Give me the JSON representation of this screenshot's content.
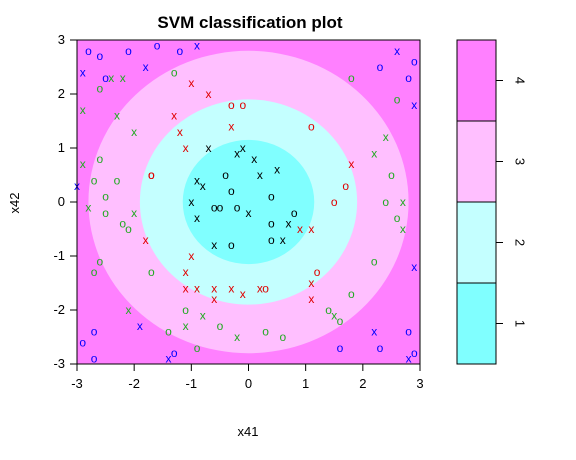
{
  "chart_data": {
    "type": "heatmap",
    "title": "SVM classification plot",
    "xlabel": "x41",
    "ylabel": "x42",
    "xlim": [
      -3,
      3
    ],
    "ylim": [
      -3,
      3
    ],
    "xticks": [
      "-3",
      "-2",
      "-1",
      "0",
      "1",
      "2",
      "3"
    ],
    "yticks": [
      "-3",
      "-2",
      "-1",
      "0",
      "1",
      "2",
      "3"
    ],
    "regions": [
      {
        "class": "1",
        "color": "#80FFFF",
        "rule": "radius < 1.15"
      },
      {
        "class": "2",
        "color": "#C4FFFF",
        "rule": "1.15 <= radius < 1.9"
      },
      {
        "class": "3",
        "color": "#FFBFFF",
        "rule": "1.9 <= radius < 2.8"
      },
      {
        "class": "4",
        "color": "#FF80FF",
        "rule": "radius >= 2.8"
      }
    ],
    "legend": {
      "placement": "right",
      "labels": [
        "1",
        "2",
        "3",
        "4"
      ],
      "colors": [
        "#80FFFF",
        "#C4FFFF",
        "#FFBFFF",
        "#FF80FF"
      ]
    },
    "class_colors": {
      "1": "#000000",
      "2": "#E00000",
      "3": "#22AA22",
      "4": "#0000FF"
    },
    "points": [
      {
        "x": -0.7,
        "y": 1.0,
        "c": "1",
        "s": "x"
      },
      {
        "x": -0.2,
        "y": 0.9,
        "c": "1",
        "s": "x"
      },
      {
        "x": 0.1,
        "y": 0.8,
        "c": "1",
        "s": "x"
      },
      {
        "x": 0.5,
        "y": 0.6,
        "c": "1",
        "s": "x"
      },
      {
        "x": -0.9,
        "y": 0.4,
        "c": "1",
        "s": "x"
      },
      {
        "x": -0.8,
        "y": 0.3,
        "c": "1",
        "s": "x"
      },
      {
        "x": -0.4,
        "y": 0.5,
        "c": "1",
        "s": "o"
      },
      {
        "x": 0.2,
        "y": 0.5,
        "c": "1",
        "s": "x"
      },
      {
        "x": -0.3,
        "y": 0.2,
        "c": "1",
        "s": "o"
      },
      {
        "x": 0.4,
        "y": 0.1,
        "c": "1",
        "s": "o"
      },
      {
        "x": -1.0,
        "y": 0.0,
        "c": "1",
        "s": "x"
      },
      {
        "x": -0.6,
        "y": -0.1,
        "c": "1",
        "s": "o"
      },
      {
        "x": -0.5,
        "y": -0.1,
        "c": "1",
        "s": "o"
      },
      {
        "x": -0.2,
        "y": -0.1,
        "c": "1",
        "s": "o"
      },
      {
        "x": 0.8,
        "y": -0.2,
        "c": "1",
        "s": "o"
      },
      {
        "x": -0.9,
        "y": -0.3,
        "c": "1",
        "s": "x"
      },
      {
        "x": 0.4,
        "y": -0.4,
        "c": "1",
        "s": "o"
      },
      {
        "x": 0.7,
        "y": -0.4,
        "c": "1",
        "s": "x"
      },
      {
        "x": -0.6,
        "y": -0.8,
        "c": "1",
        "s": "x"
      },
      {
        "x": -0.3,
        "y": -0.8,
        "c": "1",
        "s": "o"
      },
      {
        "x": 0.4,
        "y": -0.7,
        "c": "1",
        "s": "o"
      },
      {
        "x": 0.6,
        "y": -0.7,
        "c": "1",
        "s": "x"
      },
      {
        "x": 0.0,
        "y": -0.2,
        "c": "1",
        "s": "x"
      },
      {
        "x": -0.1,
        "y": 1.0,
        "c": "1",
        "s": "x"
      },
      {
        "x": -1.0,
        "y": 2.2,
        "c": "2",
        "s": "x"
      },
      {
        "x": -0.7,
        "y": 2.0,
        "c": "2",
        "s": "x"
      },
      {
        "x": -0.3,
        "y": 1.8,
        "c": "2",
        "s": "o"
      },
      {
        "x": -0.1,
        "y": 1.8,
        "c": "2",
        "s": "o"
      },
      {
        "x": -1.3,
        "y": 1.6,
        "c": "2",
        "s": "x"
      },
      {
        "x": -1.2,
        "y": 1.3,
        "c": "2",
        "s": "x"
      },
      {
        "x": 1.1,
        "y": 1.4,
        "c": "2",
        "s": "o"
      },
      {
        "x": -1.1,
        "y": 1.0,
        "c": "2",
        "s": "x"
      },
      {
        "x": -1.7,
        "y": 0.5,
        "c": "2",
        "s": "o"
      },
      {
        "x": -1.7,
        "y": 0.5,
        "c": "2",
        "s": "o"
      },
      {
        "x": 1.8,
        "y": 0.7,
        "c": "2",
        "s": "x"
      },
      {
        "x": 1.7,
        "y": 0.3,
        "c": "2",
        "s": "o"
      },
      {
        "x": 1.5,
        "y": 0.0,
        "c": "2",
        "s": "o"
      },
      {
        "x": 0.9,
        "y": -0.5,
        "c": "2",
        "s": "x"
      },
      {
        "x": 1.1,
        "y": -0.5,
        "c": "2",
        "s": "x"
      },
      {
        "x": -1.8,
        "y": -0.7,
        "c": "2",
        "s": "x"
      },
      {
        "x": -1.0,
        "y": -1.0,
        "c": "2",
        "s": "x"
      },
      {
        "x": -1.1,
        "y": -1.3,
        "c": "2",
        "s": "x"
      },
      {
        "x": 1.2,
        "y": -1.3,
        "c": "2",
        "s": "o"
      },
      {
        "x": -1.1,
        "y": -1.6,
        "c": "2",
        "s": "x"
      },
      {
        "x": -0.9,
        "y": -1.6,
        "c": "2",
        "s": "x"
      },
      {
        "x": -0.6,
        "y": -1.6,
        "c": "2",
        "s": "x"
      },
      {
        "x": -0.3,
        "y": -1.6,
        "c": "2",
        "s": "x"
      },
      {
        "x": -0.1,
        "y": -1.7,
        "c": "2",
        "s": "x"
      },
      {
        "x": 0.3,
        "y": -1.6,
        "c": "2",
        "s": "o"
      },
      {
        "x": 1.1,
        "y": -1.5,
        "c": "2",
        "s": "x"
      },
      {
        "x": 1.1,
        "y": -1.8,
        "c": "2",
        "s": "x"
      },
      {
        "x": -0.6,
        "y": -1.8,
        "c": "2",
        "s": "x"
      },
      {
        "x": -0.3,
        "y": 1.4,
        "c": "2",
        "s": "x"
      },
      {
        "x": 0.2,
        "y": -1.6,
        "c": "2",
        "s": "x"
      },
      {
        "x": -2.4,
        "y": 2.3,
        "c": "3",
        "s": "x"
      },
      {
        "x": -2.2,
        "y": 2.3,
        "c": "3",
        "s": "x"
      },
      {
        "x": -1.3,
        "y": 2.4,
        "c": "3",
        "s": "o"
      },
      {
        "x": -2.6,
        "y": 2.1,
        "c": "3",
        "s": "o"
      },
      {
        "x": -2.9,
        "y": 1.7,
        "c": "3",
        "s": "x"
      },
      {
        "x": -2.3,
        "y": 1.6,
        "c": "3",
        "s": "x"
      },
      {
        "x": -2.0,
        "y": 1.3,
        "c": "3",
        "s": "x"
      },
      {
        "x": -2.9,
        "y": 0.7,
        "c": "3",
        "s": "x"
      },
      {
        "x": -2.6,
        "y": 0.8,
        "c": "3",
        "s": "o"
      },
      {
        "x": -2.7,
        "y": 0.4,
        "c": "3",
        "s": "o"
      },
      {
        "x": -2.3,
        "y": 0.4,
        "c": "3",
        "s": "o"
      },
      {
        "x": -2.5,
        "y": 0.1,
        "c": "3",
        "s": "o"
      },
      {
        "x": -2.8,
        "y": -0.1,
        "c": "3",
        "s": "x"
      },
      {
        "x": -2.0,
        "y": -0.2,
        "c": "3",
        "s": "x"
      },
      {
        "x": -2.2,
        "y": -0.4,
        "c": "3",
        "s": "o"
      },
      {
        "x": -2.1,
        "y": -0.5,
        "c": "3",
        "s": "o"
      },
      {
        "x": -2.6,
        "y": -1.1,
        "c": "3",
        "s": "o"
      },
      {
        "x": -1.7,
        "y": -1.3,
        "c": "3",
        "s": "o"
      },
      {
        "x": -2.7,
        "y": -1.3,
        "c": "3",
        "s": "o"
      },
      {
        "x": -2.1,
        "y": -2.0,
        "c": "3",
        "s": "x"
      },
      {
        "x": -1.1,
        "y": -2.0,
        "c": "3",
        "s": "o"
      },
      {
        "x": -0.8,
        "y": -2.1,
        "c": "3",
        "s": "x"
      },
      {
        "x": -0.5,
        "y": -2.3,
        "c": "3",
        "s": "o"
      },
      {
        "x": -0.2,
        "y": -2.5,
        "c": "3",
        "s": "x"
      },
      {
        "x": 0.3,
        "y": -2.4,
        "c": "3",
        "s": "o"
      },
      {
        "x": 0.6,
        "y": -2.5,
        "c": "3",
        "s": "o"
      },
      {
        "x": 1.5,
        "y": -2.1,
        "c": "3",
        "s": "x"
      },
      {
        "x": 1.6,
        "y": -2.2,
        "c": "3",
        "s": "o"
      },
      {
        "x": 1.8,
        "y": -1.7,
        "c": "3",
        "s": "o"
      },
      {
        "x": 2.2,
        "y": -1.1,
        "c": "3",
        "s": "o"
      },
      {
        "x": 2.6,
        "y": -0.3,
        "c": "3",
        "s": "o"
      },
      {
        "x": 2.7,
        "y": -0.5,
        "c": "3",
        "s": "x"
      },
      {
        "x": 2.4,
        "y": 0.0,
        "c": "3",
        "s": "o"
      },
      {
        "x": 2.7,
        "y": 0.0,
        "c": "3",
        "s": "x"
      },
      {
        "x": 2.5,
        "y": 0.5,
        "c": "3",
        "s": "o"
      },
      {
        "x": 2.2,
        "y": 0.9,
        "c": "3",
        "s": "x"
      },
      {
        "x": 2.4,
        "y": 1.2,
        "c": "3",
        "s": "x"
      },
      {
        "x": 1.8,
        "y": 2.3,
        "c": "3",
        "s": "o"
      },
      {
        "x": 2.6,
        "y": 1.9,
        "c": "3",
        "s": "o"
      },
      {
        "x": -1.1,
        "y": -2.3,
        "c": "3",
        "s": "x"
      },
      {
        "x": -0.9,
        "y": -2.7,
        "c": "3",
        "s": "o"
      },
      {
        "x": -1.4,
        "y": -2.4,
        "c": "3",
        "s": "o"
      },
      {
        "x": -2.5,
        "y": -0.2,
        "c": "3",
        "s": "o"
      },
      {
        "x": 1.4,
        "y": -2.0,
        "c": "3",
        "s": "o"
      },
      {
        "x": -2.8,
        "y": 2.8,
        "c": "4",
        "s": "o"
      },
      {
        "x": -2.6,
        "y": 2.7,
        "c": "4",
        "s": "o"
      },
      {
        "x": -2.1,
        "y": 2.8,
        "c": "4",
        "s": "o"
      },
      {
        "x": -1.6,
        "y": 2.9,
        "c": "4",
        "s": "o"
      },
      {
        "x": -1.2,
        "y": 2.8,
        "c": "4",
        "s": "o"
      },
      {
        "x": -0.9,
        "y": 2.9,
        "c": "4",
        "s": "x"
      },
      {
        "x": -1.8,
        "y": 2.5,
        "c": "4",
        "s": "x"
      },
      {
        "x": -2.5,
        "y": 2.3,
        "c": "4",
        "s": "o"
      },
      {
        "x": -2.9,
        "y": 2.4,
        "c": "4",
        "s": "x"
      },
      {
        "x": 2.3,
        "y": 2.5,
        "c": "4",
        "s": "o"
      },
      {
        "x": 2.6,
        "y": 2.8,
        "c": "4",
        "s": "x"
      },
      {
        "x": 2.9,
        "y": 2.6,
        "c": "4",
        "s": "o"
      },
      {
        "x": 2.8,
        "y": 2.3,
        "c": "4",
        "s": "o"
      },
      {
        "x": 2.9,
        "y": 1.8,
        "c": "4",
        "s": "x"
      },
      {
        "x": -3.0,
        "y": 0.3,
        "c": "4",
        "s": "x"
      },
      {
        "x": -2.9,
        "y": -2.6,
        "c": "4",
        "s": "o"
      },
      {
        "x": -2.7,
        "y": -2.4,
        "c": "4",
        "s": "o"
      },
      {
        "x": -1.9,
        "y": -2.3,
        "c": "4",
        "s": "x"
      },
      {
        "x": -1.4,
        "y": -2.9,
        "c": "4",
        "s": "x"
      },
      {
        "x": -1.3,
        "y": -2.8,
        "c": "4",
        "s": "o"
      },
      {
        "x": 1.6,
        "y": -2.7,
        "c": "4",
        "s": "o"
      },
      {
        "x": 2.2,
        "y": -2.4,
        "c": "4",
        "s": "x"
      },
      {
        "x": 2.3,
        "y": -2.7,
        "c": "4",
        "s": "o"
      },
      {
        "x": 2.8,
        "y": -2.9,
        "c": "4",
        "s": "x"
      },
      {
        "x": 2.9,
        "y": -2.8,
        "c": "4",
        "s": "o"
      },
      {
        "x": 2.9,
        "y": -1.2,
        "c": "4",
        "s": "x"
      },
      {
        "x": 2.8,
        "y": -2.4,
        "c": "4",
        "s": "o"
      },
      {
        "x": -2.7,
        "y": -2.9,
        "c": "4",
        "s": "o"
      }
    ]
  }
}
